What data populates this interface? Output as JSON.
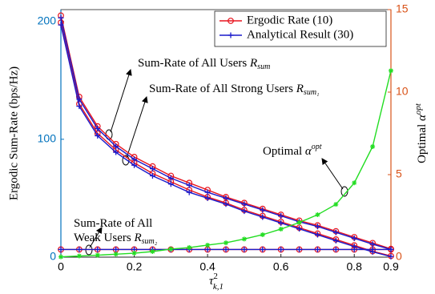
{
  "chart_data": {
    "type": "line",
    "xlabel": {
      "base": "τ",
      "sup": "2",
      "sub": "k,1"
    },
    "ylabel": "Ergodic Sum-Rate (bps/Hz)",
    "y2label": {
      "text": "Optimal ",
      "math": "α",
      "sup": "opt"
    },
    "x": [
      0,
      0.05,
      0.1,
      0.15,
      0.2,
      0.25,
      0.3,
      0.35,
      0.4,
      0.45,
      0.5,
      0.55,
      0.6,
      0.65,
      0.7,
      0.75,
      0.8,
      0.85,
      0.9
    ],
    "xlim": [
      0,
      0.9
    ],
    "xticks": [
      0,
      0.2,
      0.4,
      0.6,
      0.8,
      0.9
    ],
    "ylim": [
      0,
      210
    ],
    "yticks": [
      0,
      100,
      200
    ],
    "y2lim": [
      0,
      15
    ],
    "y2ticks": [
      0,
      5,
      10,
      15
    ],
    "ycolor": "#0072bd",
    "y2color": "#d95319",
    "legend": "upper right",
    "series": [
      {
        "name": "Ergodic Rate (10)",
        "color": "#e8141e",
        "marker": "circle",
        "curves": [
          {
            "values": [
              205,
              136,
              111,
              96,
              85,
              77,
              69,
              63,
              57,
              51,
              46,
              41,
              36,
              31,
              27,
              22,
              17,
              12,
              7
            ]
          },
          {
            "values": [
              199,
              130,
              105,
              91,
              80,
              71,
              64,
              57,
              51,
              46,
              40,
              35,
              30,
              25,
              20,
              15,
              10,
              5,
              1
            ]
          },
          {
            "values": [
              6.5,
              6.5,
              6.5,
              6.5,
              6.5,
              6.5,
              6.5,
              6.5,
              6.5,
              6.5,
              6.5,
              6.5,
              6.5,
              6.5,
              6.5,
              6.5,
              6.5,
              6.5,
              6.5
            ]
          }
        ]
      },
      {
        "name": "Analytical Result (30)",
        "color": "#1a1acc",
        "marker": "plus",
        "curves": [
          {
            "values": [
              203,
              134,
              109,
              94,
              83,
              75,
              67,
              61,
              55,
              50,
              45,
              40,
              35,
              30,
              26,
              21,
              16,
              11,
              6.5
            ]
          },
          {
            "values": [
              197,
              128,
              103,
              89,
              78,
              69,
              62,
              55,
              50,
              45,
              39,
              34,
              29,
              24,
              19,
              14,
              9,
              4.5,
              0.5
            ]
          },
          {
            "values": [
              6.5,
              6.5,
              6.5,
              6.5,
              6.5,
              6.5,
              6.5,
              6.5,
              6.5,
              6.5,
              6.5,
              6.5,
              6.5,
              6.5,
              6.5,
              6.5,
              6.5,
              6.5,
              6.5
            ]
          }
        ]
      },
      {
        "axis": "y2",
        "color": "#22dd22",
        "marker": "star",
        "curves": [
          {
            "values": [
              0.02,
              0.07,
              0.12,
              0.18,
              0.24,
              0.34,
              0.49,
              0.58,
              0.73,
              0.87,
              1.1,
              1.36,
              1.7,
              2.1,
              2.57,
              3.2,
              4.5,
              6.7,
              11.3
            ]
          }
        ]
      }
    ],
    "annotations": [
      {
        "text": "Sum-Rate of All Users ",
        "math": "R",
        "sub": "sum"
      },
      {
        "text": "Sum-Rate of All Strong Users ",
        "math": "R",
        "sub": "sum₁"
      },
      {
        "text": "Optimal ",
        "math": "α",
        "sup": "opt"
      },
      {
        "lines": [
          "Sum-Rate of All",
          "Weak Users "
        ],
        "math": "R",
        "sub": "sum₂"
      }
    ]
  }
}
